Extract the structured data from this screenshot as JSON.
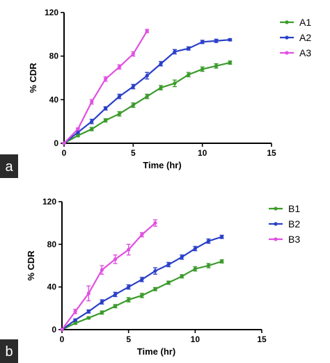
{
  "chart_data": [
    {
      "type": "line",
      "panel_label": "a",
      "xlabel": "Time (hr)",
      "ylabel": "% CDR",
      "xlim": [
        0,
        15
      ],
      "ylim": [
        0,
        120
      ],
      "xticks": [
        0,
        5,
        10,
        15
      ],
      "yticks": [
        0,
        40,
        80,
        120
      ],
      "legend_position": "right",
      "series": [
        {
          "name": "A1",
          "color": "#3a9b2a",
          "x": [
            0,
            1,
            2,
            3,
            4,
            5,
            6,
            7,
            8,
            9,
            10,
            11,
            12
          ],
          "y": [
            0,
            7,
            13,
            21,
            27,
            35,
            43,
            51,
            55,
            63,
            68,
            71,
            74
          ],
          "err": [
            0,
            1,
            1.5,
            1.5,
            2,
            2,
            2,
            2,
            3,
            2,
            2,
            2,
            1.5
          ]
        },
        {
          "name": "A2",
          "color": "#2a3fc8",
          "x": [
            0,
            1,
            2,
            3,
            4,
            5,
            6,
            7,
            8,
            9,
            10,
            11,
            12
          ],
          "y": [
            0,
            10,
            20,
            32,
            43,
            52,
            62,
            73,
            84,
            87,
            93,
            94,
            95
          ],
          "err": [
            0,
            1,
            2,
            1.5,
            2,
            2,
            3,
            2,
            2,
            1.5,
            1.5,
            1.5,
            1
          ]
        },
        {
          "name": "A3",
          "color": "#e050e0",
          "x": [
            0,
            1,
            2,
            3,
            4,
            5,
            6
          ],
          "y": [
            0,
            13,
            38,
            59,
            70,
            82,
            103
          ],
          "err": [
            0,
            1,
            2,
            2,
            2,
            2,
            1.5
          ]
        }
      ]
    },
    {
      "type": "line",
      "panel_label": "b",
      "xlabel": "Time (hr)",
      "ylabel": "% CDR",
      "xlim": [
        0,
        15
      ],
      "ylim": [
        0,
        120
      ],
      "xticks": [
        0,
        5,
        10,
        15
      ],
      "yticks": [
        0,
        40,
        80,
        120
      ],
      "legend_position": "right",
      "series": [
        {
          "name": "B1",
          "color": "#3a9b2a",
          "x": [
            0,
            1,
            2,
            3,
            4,
            5,
            6,
            7,
            8,
            9,
            10,
            11,
            12
          ],
          "y": [
            0,
            6,
            11,
            16,
            22,
            28,
            32,
            38,
            44,
            50,
            57,
            60,
            64
          ],
          "err": [
            0,
            1,
            1,
            1.5,
            1.5,
            2,
            2,
            1.5,
            1.5,
            1.5,
            2,
            2,
            1.5
          ]
        },
        {
          "name": "B2",
          "color": "#2a3fc8",
          "x": [
            0,
            1,
            2,
            3,
            4,
            5,
            6,
            7,
            8,
            9,
            10,
            11,
            12
          ],
          "y": [
            0,
            9,
            17,
            26,
            33,
            40,
            47,
            55,
            61,
            68,
            76,
            83,
            87
          ],
          "err": [
            0,
            1,
            1.5,
            2,
            2,
            2,
            2,
            3,
            2,
            2,
            2,
            2,
            1.5
          ]
        },
        {
          "name": "B3",
          "color": "#e050e0",
          "x": [
            0,
            1,
            2,
            3,
            4,
            5,
            6,
            7
          ],
          "y": [
            0,
            17,
            34,
            56,
            66,
            75,
            89,
            100
          ],
          "err": [
            0,
            2,
            7,
            4,
            4,
            5,
            2,
            3
          ]
        }
      ]
    }
  ]
}
